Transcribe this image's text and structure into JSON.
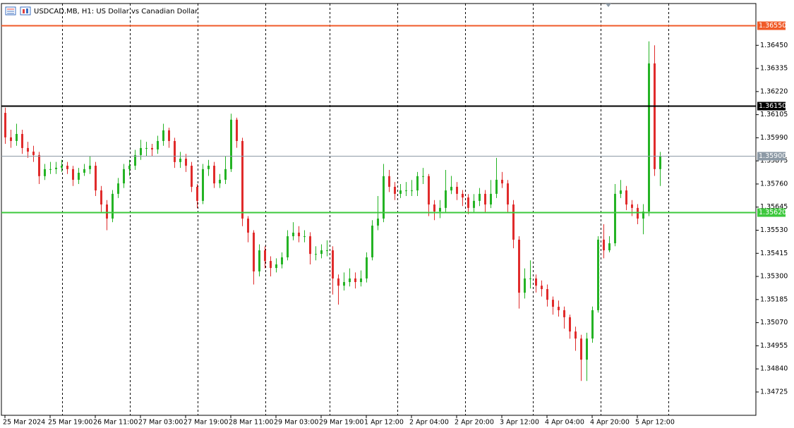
{
  "header": {
    "title": "USDCAD.MB, H1:  US Dollar vs Canadian Dollar"
  },
  "chart_data": {
    "type": "candlestick",
    "categories": [
      "25 Mar 2024",
      null,
      null,
      null,
      null,
      null,
      null,
      null,
      "25 Mar 19:00",
      null,
      null,
      null,
      null,
      null,
      null,
      null,
      "26 Mar 11:00",
      null,
      null,
      null,
      null,
      null,
      null,
      null,
      "27 Mar 03:00",
      null,
      null,
      null,
      null,
      null,
      null,
      null,
      "27 Mar 19:00",
      null,
      null,
      null,
      null,
      null,
      null,
      null,
      "28 Mar 11:00",
      null,
      null,
      null,
      null,
      null,
      null,
      null,
      "29 Mar 03:00",
      null,
      null,
      null,
      null,
      null,
      null,
      null,
      "29 Mar 19:00",
      null,
      null,
      null,
      null,
      null,
      null,
      null,
      "1 Apr 12:00",
      null,
      null,
      null,
      null,
      null,
      null,
      null,
      "2 Apr 04:00",
      null,
      null,
      null,
      null,
      null,
      null,
      null,
      "2 Apr 20:00",
      null,
      null,
      null,
      null,
      null,
      null,
      null,
      "3 Apr 12:00",
      null,
      null,
      null,
      null,
      null,
      null,
      null,
      "4 Apr 04:00",
      null,
      null,
      null,
      null,
      null,
      null,
      null,
      "4 Apr 20:00",
      null,
      null,
      null,
      null,
      null,
      null,
      null,
      "5 Apr 12:00",
      null,
      null,
      null,
      null
    ],
    "ohlc": [
      [
        1.36114,
        1.3614,
        1.3596,
        1.35992
      ],
      [
        1.35992,
        1.3603,
        1.3594,
        1.35974
      ],
      [
        1.35974,
        1.3606,
        1.3595,
        1.36009
      ],
      [
        1.36009,
        1.3603,
        1.3591,
        1.35939
      ],
      [
        1.35939,
        1.3597,
        1.3589,
        1.35921
      ],
      [
        1.35921,
        1.3595,
        1.3587,
        1.35904
      ],
      [
        1.35904,
        1.3592,
        1.3576,
        1.35799
      ],
      [
        1.35799,
        1.3586,
        1.3578,
        1.35834
      ],
      [
        1.35834,
        1.3587,
        1.3581,
        1.35834
      ],
      [
        1.35834,
        1.3587,
        1.3581,
        1.35841
      ],
      [
        1.35841,
        1.3588,
        1.3582,
        1.35851
      ],
      [
        1.35851,
        1.3587,
        1.3581,
        1.35834
      ],
      [
        1.35834,
        1.3585,
        1.3575,
        1.35781
      ],
      [
        1.35781,
        1.3584,
        1.3576,
        1.35816
      ],
      [
        1.35816,
        1.3586,
        1.358,
        1.35834
      ],
      [
        1.35834,
        1.359,
        1.3581,
        1.35851
      ],
      [
        1.35851,
        1.3587,
        1.357,
        1.35728
      ],
      [
        1.35728,
        1.3575,
        1.3562,
        1.35658
      ],
      [
        1.35658,
        1.3568,
        1.3553,
        1.35588
      ],
      [
        1.35588,
        1.3573,
        1.3557,
        1.35711
      ],
      [
        1.35711,
        1.3579,
        1.3569,
        1.35763
      ],
      [
        1.35763,
        1.3586,
        1.3574,
        1.35834
      ],
      [
        1.35834,
        1.3588,
        1.358,
        1.35851
      ],
      [
        1.35851,
        1.3593,
        1.3583,
        1.35904
      ],
      [
        1.35904,
        1.3598,
        1.3588,
        1.35939
      ],
      [
        1.35939,
        1.3597,
        1.359,
        1.35939
      ],
      [
        1.35939,
        1.3596,
        1.359,
        1.35932
      ],
      [
        1.35932,
        1.36,
        1.3591,
        1.35974
      ],
      [
        1.35974,
        1.3606,
        1.3595,
        1.36027
      ],
      [
        1.36027,
        1.3604,
        1.3594,
        1.35974
      ],
      [
        1.35974,
        1.3599,
        1.3584,
        1.35869
      ],
      [
        1.35869,
        1.3592,
        1.3584,
        1.35886
      ],
      [
        1.35886,
        1.3591,
        1.3582,
        1.35851
      ],
      [
        1.35851,
        1.3587,
        1.3572,
        1.35746
      ],
      [
        1.35746,
        1.3576,
        1.3564,
        1.35676
      ],
      [
        1.35676,
        1.3586,
        1.3566,
        1.35834
      ],
      [
        1.35834,
        1.3588,
        1.358,
        1.35851
      ],
      [
        1.35851,
        1.3587,
        1.3574,
        1.35763
      ],
      [
        1.35763,
        1.3581,
        1.3574,
        1.35781
      ],
      [
        1.35781,
        1.359,
        1.3576,
        1.35834
      ],
      [
        1.35834,
        1.3611,
        1.3582,
        1.3608
      ],
      [
        1.3608,
        1.3609,
        1.3594,
        1.35974
      ],
      [
        1.35974,
        1.3599,
        1.3555,
        1.35588
      ],
      [
        1.35588,
        1.356,
        1.3547,
        1.35518
      ],
      [
        1.35518,
        1.3553,
        1.3526,
        1.35325
      ],
      [
        1.35325,
        1.3546,
        1.353,
        1.3543
      ],
      [
        1.3543,
        1.3545,
        1.3534,
        1.35377
      ],
      [
        1.35377,
        1.354,
        1.353,
        1.35342
      ],
      [
        1.35342,
        1.3539,
        1.3532,
        1.3536
      ],
      [
        1.3536,
        1.3542,
        1.3534,
        1.35395
      ],
      [
        1.35395,
        1.3553,
        1.3538,
        1.355
      ],
      [
        1.355,
        1.3557,
        1.3548,
        1.35518
      ],
      [
        1.35518,
        1.3555,
        1.3547,
        1.355
      ],
      [
        1.355,
        1.3553,
        1.3547,
        1.355
      ],
      [
        1.355,
        1.3552,
        1.3536,
        1.35412
      ],
      [
        1.35412,
        1.3545,
        1.3538,
        1.35412
      ],
      [
        1.35412,
        1.3546,
        1.3539,
        1.3543
      ],
      [
        1.3543,
        1.3548,
        1.354,
        1.3543
      ],
      [
        1.3543,
        1.3545,
        1.3521,
        1.3529
      ],
      [
        1.3529,
        1.3531,
        1.3516,
        1.35254
      ],
      [
        1.35254,
        1.3532,
        1.3523,
        1.35272
      ],
      [
        1.35272,
        1.3534,
        1.3525,
        1.3529
      ],
      [
        1.3529,
        1.3532,
        1.3524,
        1.35272
      ],
      [
        1.35272,
        1.3533,
        1.3525,
        1.3529
      ],
      [
        1.3529,
        1.3542,
        1.3527,
        1.35395
      ],
      [
        1.35395,
        1.3558,
        1.3538,
        1.35553
      ],
      [
        1.35553,
        1.357,
        1.3553,
        1.35588
      ],
      [
        1.35588,
        1.3586,
        1.3557,
        1.35799
      ],
      [
        1.35799,
        1.3583,
        1.3572,
        1.35746
      ],
      [
        1.35746,
        1.3577,
        1.3568,
        1.35711
      ],
      [
        1.35711,
        1.3576,
        1.3569,
        1.35728
      ],
      [
        1.35728,
        1.3577,
        1.357,
        1.35728
      ],
      [
        1.35728,
        1.3578,
        1.357,
        1.35728
      ],
      [
        1.35728,
        1.3582,
        1.357,
        1.35799
      ],
      [
        1.35799,
        1.3584,
        1.3576,
        1.35799
      ],
      [
        1.35799,
        1.3581,
        1.356,
        1.35658
      ],
      [
        1.35658,
        1.3568,
        1.3558,
        1.35623
      ],
      [
        1.35623,
        1.3568,
        1.3559,
        1.35641
      ],
      [
        1.35641,
        1.3583,
        1.3562,
        1.35728
      ],
      [
        1.35728,
        1.358,
        1.3571,
        1.35746
      ],
      [
        1.35746,
        1.3577,
        1.3568,
        1.35711
      ],
      [
        1.35711,
        1.3573,
        1.3565,
        1.35693
      ],
      [
        1.35693,
        1.3571,
        1.3561,
        1.35641
      ],
      [
        1.35641,
        1.3571,
        1.3562,
        1.35676
      ],
      [
        1.35676,
        1.3574,
        1.3565,
        1.35711
      ],
      [
        1.35711,
        1.3573,
        1.3562,
        1.35658
      ],
      [
        1.35658,
        1.3578,
        1.3564,
        1.35711
      ],
      [
        1.35711,
        1.3589,
        1.3569,
        1.35781
      ],
      [
        1.35781,
        1.3582,
        1.3574,
        1.35763
      ],
      [
        1.35763,
        1.3578,
        1.3562,
        1.35658
      ],
      [
        1.35658,
        1.3568,
        1.3544,
        1.35483
      ],
      [
        1.35483,
        1.355,
        1.3514,
        1.35219
      ],
      [
        1.35219,
        1.3534,
        1.3519,
        1.3529
      ],
      [
        1.3529,
        1.3538,
        1.3524,
        1.3529
      ],
      [
        1.3529,
        1.3531,
        1.3522,
        1.35254
      ],
      [
        1.35254,
        1.3528,
        1.352,
        1.35237
      ],
      [
        1.35237,
        1.3526,
        1.3515,
        1.35184
      ],
      [
        1.35184,
        1.352,
        1.3511,
        1.35149
      ],
      [
        1.35149,
        1.3518,
        1.351,
        1.35132
      ],
      [
        1.35132,
        1.3515,
        1.3504,
        1.35097
      ],
      [
        1.35097,
        1.3511,
        1.3499,
        1.35026
      ],
      [
        1.35026,
        1.3505,
        1.3493,
        1.34991
      ],
      [
        1.34991,
        1.3501,
        1.3478,
        1.34886
      ],
      [
        1.34886,
        1.3502,
        1.3478,
        1.34991
      ],
      [
        1.34991,
        1.3515,
        1.3497,
        1.35132
      ],
      [
        1.35132,
        1.355,
        1.3512,
        1.35483
      ],
      [
        1.35483,
        1.3556,
        1.3539,
        1.3543
      ],
      [
        1.3543,
        1.355,
        1.3542,
        1.35465
      ],
      [
        1.35465,
        1.3576,
        1.3545,
        1.35711
      ],
      [
        1.35711,
        1.3578,
        1.3569,
        1.35728
      ],
      [
        1.35728,
        1.3575,
        1.3563,
        1.35658
      ],
      [
        1.35658,
        1.3568,
        1.356,
        1.35641
      ],
      [
        1.35641,
        1.3566,
        1.3556,
        1.35588
      ],
      [
        1.35588,
        1.3566,
        1.3551,
        1.35623
      ],
      [
        1.35623,
        1.3647,
        1.356,
        1.3636
      ],
      [
        1.3636,
        1.3645,
        1.358,
        1.35834
      ],
      [
        1.35834,
        1.3592,
        1.3575,
        1.359
      ]
    ],
    "up_color": "#24b324",
    "down_color": "#e02b2b",
    "ylim": [
      1.34609,
      1.36658
    ],
    "yticks": [
      {
        "value": 1.3645,
        "label": "1.36450"
      },
      {
        "value": 1.36335,
        "label": "1.36335"
      },
      {
        "value": 1.3622,
        "label": "1.36220"
      },
      {
        "value": 1.36105,
        "label": "1.36105"
      },
      {
        "value": 1.3599,
        "label": "1.35990"
      },
      {
        "value": 1.35875,
        "label": "1.35875"
      },
      {
        "value": 1.3576,
        "label": "1.35760"
      },
      {
        "value": 1.35645,
        "label": "1.35645"
      },
      {
        "value": 1.3553,
        "label": "1.35530"
      },
      {
        "value": 1.35415,
        "label": "1.35415"
      },
      {
        "value": 1.353,
        "label": "1.35300"
      },
      {
        "value": 1.35185,
        "label": "1.35185"
      },
      {
        "value": 1.3507,
        "label": "1.35070"
      },
      {
        "value": 1.34955,
        "label": "1.34955"
      },
      {
        "value": 1.3484,
        "label": "1.34840"
      },
      {
        "value": 1.34725,
        "label": "1.34725"
      }
    ],
    "levels": [
      {
        "value": 1.3655,
        "label": "1.36550",
        "color": "#f05a28",
        "width": 2
      },
      {
        "value": 1.3615,
        "label": "1.36150",
        "color": "#000000",
        "width": 2
      },
      {
        "value": 1.359,
        "label": "1.35900",
        "color": "#8d9aa6",
        "width": 1
      },
      {
        "value": 1.3562,
        "label": "1.35620",
        "color": "#3cc83c",
        "width": 2
      }
    ]
  }
}
